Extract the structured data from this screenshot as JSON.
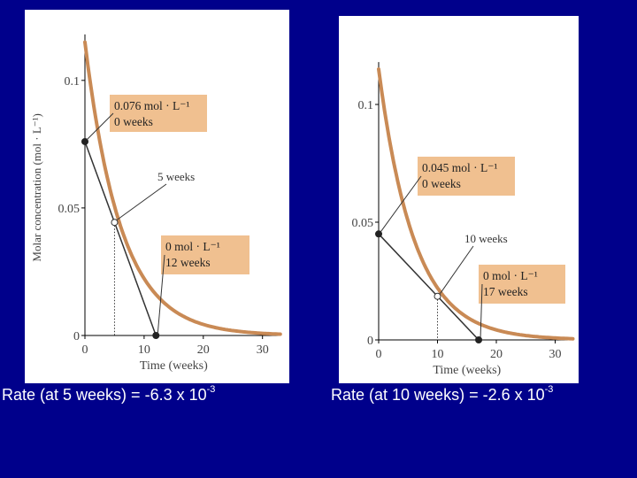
{
  "colors": {
    "background": "#00008b",
    "curve": "#c98a55",
    "label_box": "#f0c090",
    "tangent": "#333333"
  },
  "chart_data": [
    {
      "type": "line",
      "title": "",
      "xlabel": "Time (weeks)",
      "ylabel": "Molar concentration (mol · L⁻¹)",
      "xlim": [
        0,
        33
      ],
      "ylim": [
        0,
        0.118
      ],
      "xticks": [
        "0",
        "10",
        "20",
        "30"
      ],
      "yticks": [
        "0",
        "0.05",
        "0.1"
      ],
      "curve": {
        "name": "concentration",
        "c0": 0.115,
        "k": 0.164
      },
      "tangent": {
        "p1": [
          0,
          0.076
        ],
        "p2": [
          12,
          0
        ]
      },
      "tangent_point": {
        "x": 5,
        "label": "5 weeks"
      },
      "boxes": [
        {
          "line1": "0.076 mol · L⁻¹",
          "line2": "0 weeks"
        },
        {
          "line1": "0 mol · L⁻¹",
          "line2": "12 weeks"
        }
      ]
    },
    {
      "type": "line",
      "title": "",
      "xlabel": "Time (weeks)",
      "ylabel": "",
      "xlim": [
        0,
        33
      ],
      "ylim": [
        0,
        0.118
      ],
      "xticks": [
        "0",
        "10",
        "20",
        "30"
      ],
      "yticks": [
        "0",
        "0.05",
        "0.1"
      ],
      "curve": {
        "name": "concentration",
        "c0": 0.115,
        "k": 0.165
      },
      "tangent": {
        "p1": [
          0,
          0.045
        ],
        "p2": [
          17,
          0
        ]
      },
      "tangent_point": {
        "x": 10,
        "label": "10 weeks"
      },
      "boxes": [
        {
          "line1": "0.045 mol · L⁻¹",
          "line2": "0 weeks"
        },
        {
          "line1": "0 mol · L⁻¹",
          "line2": "17 weeks"
        }
      ]
    }
  ],
  "captions": [
    {
      "text": "Rate (at 5 weeks) = -6.3 x 10",
      "exp": "-3"
    },
    {
      "text": "Rate (at 10 weeks) = -2.6 x 10",
      "exp": "-3"
    }
  ]
}
